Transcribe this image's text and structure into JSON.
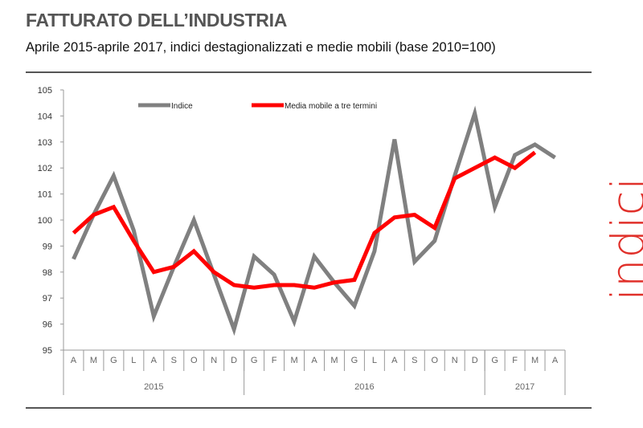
{
  "title": "FATTURATO DELL’INDUSTRIA",
  "subtitle": "Aprile 2015-aprile 2017, indici destagionalizzati e medie mobili (base 2010=100)",
  "side_label": "indici",
  "chart_data": {
    "type": "line",
    "categories": [
      "A",
      "M",
      "G",
      "L",
      "A",
      "S",
      "O",
      "N",
      "D",
      "G",
      "F",
      "M",
      "A",
      "M",
      "G",
      "L",
      "A",
      "S",
      "O",
      "N",
      "D",
      "G",
      "F",
      "M",
      "A"
    ],
    "years": [
      {
        "label": "2015",
        "count": 9
      },
      {
        "label": "2016",
        "count": 12
      },
      {
        "label": "2017",
        "count": 4
      }
    ],
    "ylim": [
      95,
      105
    ],
    "yticks": [
      95,
      96,
      97,
      98,
      99,
      100,
      101,
      102,
      103,
      104,
      105
    ],
    "grid": false,
    "legend_position": "top",
    "series": [
      {
        "name": "Indice",
        "color": "#808080",
        "values": [
          98.5,
          100.2,
          101.7,
          99.6,
          96.3,
          98.2,
          100.0,
          97.9,
          95.8,
          98.6,
          97.9,
          96.1,
          98.6,
          97.6,
          96.7,
          98.8,
          103.1,
          98.4,
          99.2,
          101.7,
          104.1,
          100.5,
          102.5,
          102.9,
          102.4
        ]
      },
      {
        "name": "Media mobile a tre termini",
        "color": "#ff0000",
        "values": [
          99.5,
          100.2,
          100.5,
          99.2,
          98.0,
          98.2,
          98.8,
          98.0,
          97.5,
          97.4,
          97.5,
          97.5,
          97.4,
          97.6,
          97.7,
          99.5,
          100.1,
          100.2,
          99.7,
          101.6,
          102.0,
          102.4,
          102.0,
          102.6,
          null
        ]
      }
    ]
  }
}
